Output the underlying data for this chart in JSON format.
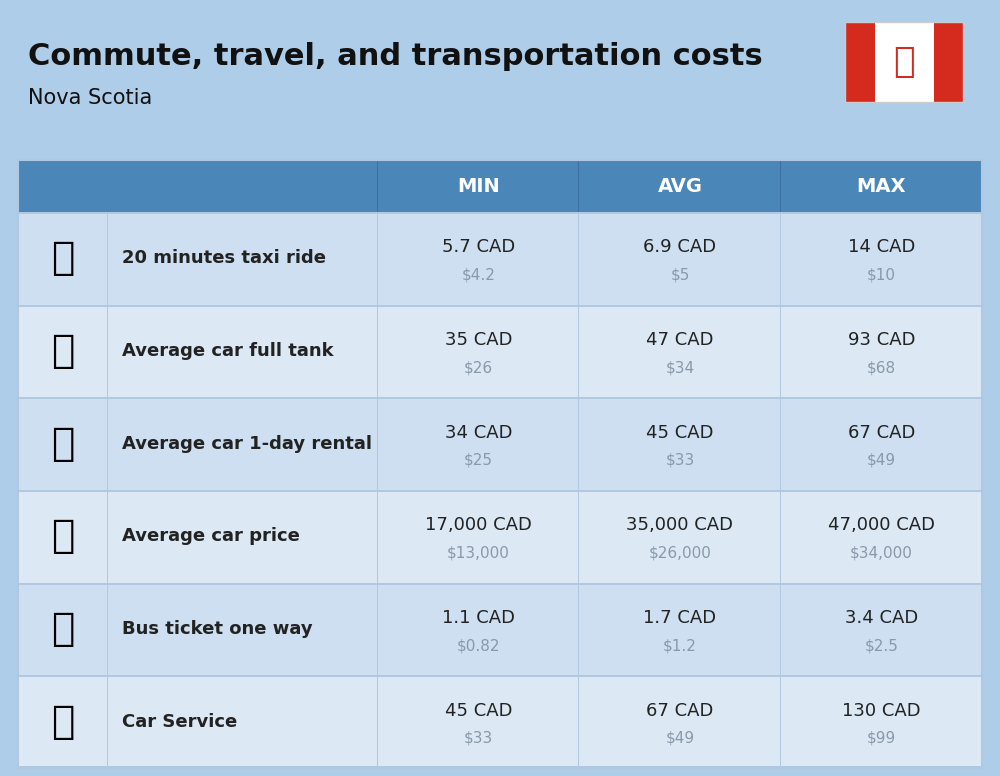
{
  "title": "Commute, travel, and transportation costs",
  "subtitle": "Nova Scotia",
  "background_color": "#aecde8",
  "header_bg_color": "#4a86b8",
  "header_text_color": "#ffffff",
  "col_header_labels": [
    "MIN",
    "AVG",
    "MAX"
  ],
  "rows": [
    {
      "label": "20 minutes taxi ride",
      "min_cad": "5.7 CAD",
      "min_usd": "$4.2",
      "avg_cad": "6.9 CAD",
      "avg_usd": "$5",
      "max_cad": "14 CAD",
      "max_usd": "$10"
    },
    {
      "label": "Average car full tank",
      "min_cad": "35 CAD",
      "min_usd": "$26",
      "avg_cad": "47 CAD",
      "avg_usd": "$34",
      "max_cad": "93 CAD",
      "max_usd": "$68"
    },
    {
      "label": "Average car 1-day rental",
      "min_cad": "34 CAD",
      "min_usd": "$25",
      "avg_cad": "45 CAD",
      "avg_usd": "$33",
      "max_cad": "67 CAD",
      "max_usd": "$49"
    },
    {
      "label": "Average car price",
      "min_cad": "17,000 CAD",
      "min_usd": "$13,000",
      "avg_cad": "35,000 CAD",
      "avg_usd": "$26,000",
      "max_cad": "47,000 CAD",
      "max_usd": "$34,000"
    },
    {
      "label": "Bus ticket one way",
      "min_cad": "1.1 CAD",
      "min_usd": "$0.82",
      "avg_cad": "1.7 CAD",
      "avg_usd": "$1.2",
      "max_cad": "3.4 CAD",
      "max_usd": "$2.5"
    },
    {
      "label": "Car Service",
      "min_cad": "45 CAD",
      "min_usd": "$33",
      "avg_cad": "67 CAD",
      "avg_usd": "$49",
      "max_cad": "130 CAD",
      "max_usd": "$99"
    }
  ],
  "row_colors": [
    "#cddff0",
    "#dce9f5",
    "#cddff0",
    "#dce9f5",
    "#cddff0",
    "#dce9f5"
  ],
  "usd_color": "#8899aa",
  "table_text_color": "#222222",
  "icon_emojis": [
    "🚖",
    "⛽",
    "🚙",
    "🚗",
    "🚌",
    "🔧"
  ],
  "title_fontsize": 22,
  "subtitle_fontsize": 15,
  "header_fontsize": 14,
  "label_fontsize": 13,
  "cad_fontsize": 13,
  "usd_fontsize": 11,
  "flag_red": "#D52B1E",
  "flag_white": "#FFFFFF"
}
